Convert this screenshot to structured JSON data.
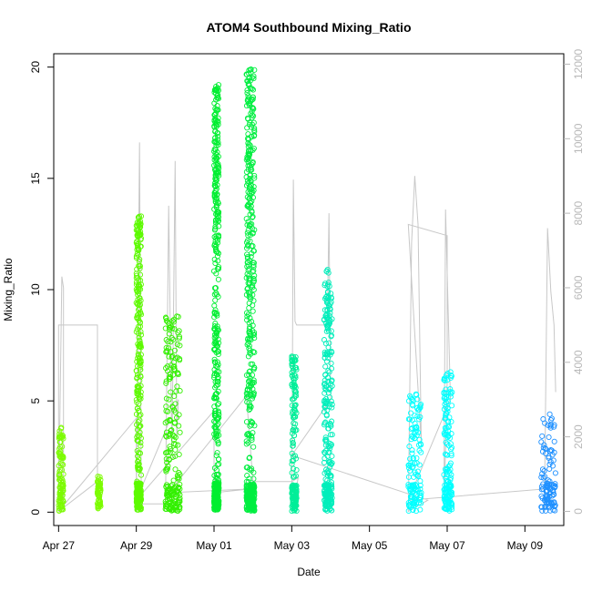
{
  "chart_data": {
    "type": "scatter",
    "title": "ATOM4 Southbound Mixing_Ratio",
    "xlabel": "Date",
    "ylabel": "Mixing_Ratio",
    "x_axis": {
      "type": "date",
      "range": [
        "2018-04-26T21:00",
        "2018-05-10T00:00"
      ],
      "ticks": [
        {
          "x": "2018-04-27",
          "label": "Apr 27"
        },
        {
          "x": "2018-04-29",
          "label": "Apr 29"
        },
        {
          "x": "2018-05-01",
          "label": "May 01"
        },
        {
          "x": "2018-05-03",
          "label": "May 03"
        },
        {
          "x": "2018-05-05",
          "label": "May 05"
        },
        {
          "x": "2018-05-07",
          "label": "May 07"
        },
        {
          "x": "2018-05-09",
          "label": "May 09"
        }
      ]
    },
    "ylim": [
      -0.6,
      20.6
    ],
    "y_ticks": [
      0,
      5,
      10,
      15,
      20
    ],
    "y2lim": [
      -380,
      12280
    ],
    "y2_ticks": [
      0,
      2000,
      4000,
      6000,
      8000,
      10000,
      12000
    ],
    "grid": false,
    "legend": "none",
    "marker": "open-circle",
    "points_color_by": "time",
    "secondary_series_color": "#c8c8c8",
    "scatter_clusters": [
      {
        "x_start": "2018-04-27T00:00",
        "x_end": "2018-04-27T03:00",
        "y_min": 0.05,
        "y_max": 3.8,
        "color": "#7cfc00"
      },
      {
        "x_start": "2018-04-28T00:00",
        "x_end": "2018-04-28T02:00",
        "y_min": 0.15,
        "y_max": 1.6,
        "color": "#7cfc00"
      },
      {
        "x_start": "2018-04-29T00:00",
        "x_end": "2018-04-29T03:00",
        "y_min": 0.1,
        "y_max": 13.3,
        "color": "#5dfa00"
      },
      {
        "x_start": "2018-04-29T18:00",
        "x_end": "2018-04-30T03:00",
        "y_min": 0.05,
        "y_max": 8.8,
        "color": "#33f000"
      },
      {
        "x_start": "2018-05-01T00:00",
        "x_end": "2018-05-01T03:00",
        "y_min": 0.1,
        "y_max": 19.2,
        "color": "#00ee30"
      },
      {
        "x_start": "2018-05-01T20:00",
        "x_end": "2018-05-02T01:00",
        "y_min": 0.05,
        "y_max": 19.9,
        "color": "#00ee40"
      },
      {
        "x_start": "2018-05-03T00:00",
        "x_end": "2018-05-03T03:00",
        "y_min": 0.05,
        "y_max": 7.0,
        "color": "#00ee99"
      },
      {
        "x_start": "2018-05-03T20:00",
        "x_end": "2018-05-04T01:00",
        "y_min": 0.05,
        "y_max": 10.9,
        "color": "#00eebb"
      },
      {
        "x_start": "2018-05-06T00:00",
        "x_end": "2018-05-06T08:00",
        "y_min": 0.05,
        "y_max": 5.3,
        "color": "#00ffff"
      },
      {
        "x_start": "2018-05-06T22:00",
        "x_end": "2018-05-07T03:00",
        "y_min": 0.05,
        "y_max": 6.3,
        "color": "#00ffff"
      },
      {
        "x_start": "2018-05-09T10:00",
        "x_end": "2018-05-09T19:00",
        "y_min": 0.05,
        "y_max": 4.4,
        "color": "#1e90ff"
      }
    ],
    "secondary_line_vertices": [
      [
        "2018-04-27T00:00",
        0
      ],
      [
        "2018-04-27T02:00",
        6300
      ],
      [
        "2018-04-27T03:00",
        6000
      ],
      [
        "2018-04-27T03:00",
        0
      ],
      [
        "2018-04-27T00:00",
        0
      ],
      [
        "2018-04-27T00:00",
        5000
      ],
      [
        "2018-04-28T00:00",
        5000
      ],
      [
        "2018-04-28T00:00",
        800
      ],
      [
        "2018-04-27T00:00",
        0
      ],
      [
        "2018-04-29T00:00",
        2500
      ],
      [
        "2018-04-29T00:00",
        0
      ],
      [
        "2018-04-29T02:00",
        9900
      ],
      [
        "2018-04-29T03:00",
        1000
      ],
      [
        "2018-04-29T03:00",
        200
      ],
      [
        "2018-04-29T18:00",
        200
      ],
      [
        "2018-04-29T20:00",
        8200
      ],
      [
        "2018-04-29T22:00",
        1500
      ],
      [
        "2018-04-30T00:00",
        9400
      ],
      [
        "2018-04-30T01:00",
        2000
      ],
      [
        "2018-04-30T02:00",
        3000
      ],
      [
        "2018-04-29T00:00",
        300
      ],
      [
        "2018-05-01T00:00",
        2700
      ],
      [
        "2018-05-01T00:00",
        500
      ],
      [
        "2018-05-01T22:00",
        600
      ],
      [
        "2018-04-29T20:00",
        500
      ],
      [
        "2018-05-01T20:00",
        3100
      ],
      [
        "2018-05-02T00:00",
        800
      ],
      [
        "2018-05-03T00:00",
        800
      ],
      [
        "2018-05-03T04:00",
        900
      ],
      [
        "2018-05-03T00:00",
        0
      ],
      [
        "2018-05-03T01:00",
        8900
      ],
      [
        "2018-05-03T02:00",
        5100
      ],
      [
        "2018-05-03T03:00",
        5000
      ],
      [
        "2018-05-03T22:00",
        5000
      ],
      [
        "2018-05-03T23:00",
        8000
      ],
      [
        "2018-05-04T00:00",
        3000
      ],
      [
        "2018-05-03T00:00",
        1500
      ],
      [
        "2018-05-06T12:00",
        300
      ],
      [
        "2018-05-06T00:00",
        0
      ],
      [
        "2018-05-06T02:00",
        7200
      ],
      [
        "2018-05-06T04:00",
        9000
      ],
      [
        "2018-05-06T06:00",
        7700
      ],
      [
        "2018-05-06T08:00",
        1800
      ],
      [
        "2018-05-06T00:00",
        7700
      ],
      [
        "2018-05-07T00:00",
        7400
      ],
      [
        "2018-05-07T00:00",
        3500
      ],
      [
        "2018-05-06T22:00",
        0
      ],
      [
        "2018-05-06T23:00",
        8100
      ],
      [
        "2018-05-07T02:00",
        3000
      ],
      [
        "2018-05-06T00:00",
        300
      ],
      [
        "2018-05-09T12:00",
        600
      ],
      [
        "2018-05-09T12:00",
        0
      ],
      [
        "2018-05-09T14:00",
        7600
      ],
      [
        "2018-05-09T16:00",
        5900
      ],
      [
        "2018-05-09T18:00",
        5000
      ],
      [
        "2018-05-09T19:00",
        3200
      ]
    ]
  }
}
